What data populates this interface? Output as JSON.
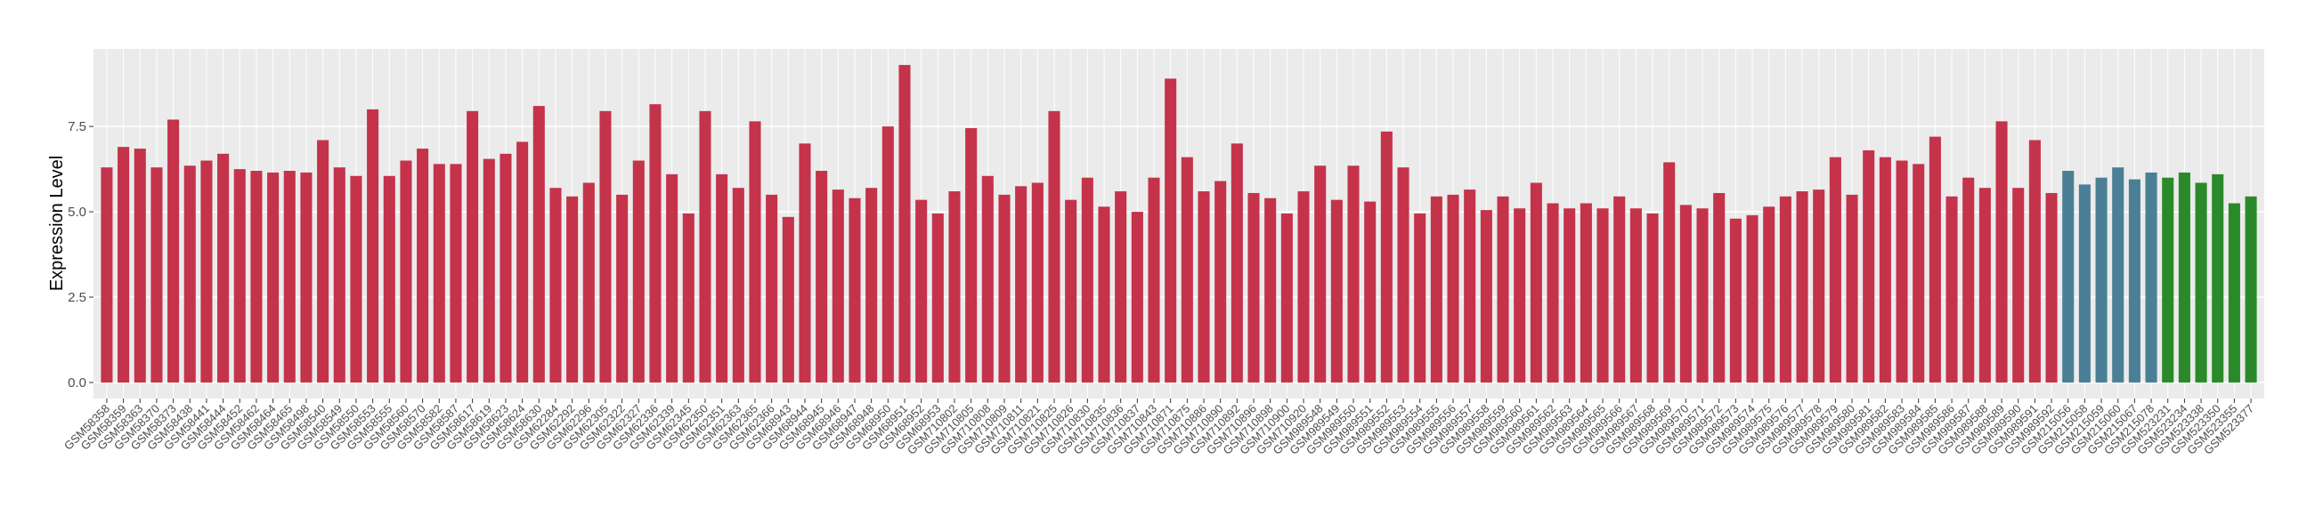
{
  "chart_data": {
    "type": "bar",
    "y_label": "Expression Level",
    "categories": [
      "GSM58358",
      "GSM58359",
      "GSM58363",
      "GSM58370",
      "GSM58373",
      "GSM58438",
      "GSM58441",
      "GSM58444",
      "GSM58452",
      "GSM58462",
      "GSM58464",
      "GSM58465",
      "GSM58498",
      "GSM58540",
      "GSM58549",
      "GSM58550",
      "GSM58553",
      "GSM58555",
      "GSM58560",
      "GSM58570",
      "GSM58582",
      "GSM58587",
      "GSM58617",
      "GSM58619",
      "GSM58623",
      "GSM58624",
      "GSM58630",
      "GSM62284",
      "GSM62292",
      "GSM62296",
      "GSM62305",
      "GSM62322",
      "GSM62327",
      "GSM62336",
      "GSM62339",
      "GSM62345",
      "GSM62350",
      "GSM62351",
      "GSM62363",
      "GSM62365",
      "GSM62366",
      "GSM68943",
      "GSM68944",
      "GSM68945",
      "GSM68946",
      "GSM68947",
      "GSM68948",
      "GSM68950",
      "GSM68951",
      "GSM68952",
      "GSM68953",
      "GSM710802",
      "GSM710805",
      "GSM710808",
      "GSM710809",
      "GSM710811",
      "GSM710821",
      "GSM710825",
      "GSM710826",
      "GSM710830",
      "GSM710835",
      "GSM710836",
      "GSM710837",
      "GSM710843",
      "GSM710871",
      "GSM710875",
      "GSM710886",
      "GSM710890",
      "GSM710892",
      "GSM710896",
      "GSM710898",
      "GSM710900",
      "GSM710920",
      "GSM989548",
      "GSM989549",
      "GSM989550",
      "GSM989551",
      "GSM989552",
      "GSM989553",
      "GSM989554",
      "GSM989555",
      "GSM989556",
      "GSM989557",
      "GSM989558",
      "GSM989559",
      "GSM989560",
      "GSM989561",
      "GSM989562",
      "GSM989563",
      "GSM989564",
      "GSM989565",
      "GSM989566",
      "GSM989567",
      "GSM989568",
      "GSM989569",
      "GSM989570",
      "GSM989571",
      "GSM989572",
      "GSM989573",
      "GSM989574",
      "GSM989575",
      "GSM989576",
      "GSM989577",
      "GSM989578",
      "GSM989579",
      "GSM989580",
      "GSM989581",
      "GSM989582",
      "GSM989583",
      "GSM989584",
      "GSM989585",
      "GSM989586",
      "GSM989587",
      "GSM989588",
      "GSM989589",
      "GSM989590",
      "GSM989591",
      "GSM989592",
      "GSM215056",
      "GSM215058",
      "GSM215059",
      "GSM215060",
      "GSM215067",
      "GSM215078",
      "GSM523231",
      "GSM523234",
      "GSM523338",
      "GSM523350",
      "GSM523355",
      "GSM523377"
    ],
    "values": [
      6.3,
      6.9,
      6.85,
      6.3,
      7.7,
      6.35,
      6.5,
      6.7,
      6.25,
      6.2,
      6.15,
      6.2,
      6.15,
      7.1,
      6.3,
      6.05,
      8.0,
      6.05,
      6.5,
      6.85,
      6.4,
      6.4,
      7.95,
      6.55,
      6.7,
      7.05,
      8.1,
      5.7,
      5.45,
      5.85,
      7.95,
      5.5,
      6.5,
      8.15,
      6.1,
      4.95,
      7.95,
      6.1,
      5.7,
      7.65,
      5.5,
      4.85,
      7.0,
      6.2,
      5.65,
      5.4,
      5.7,
      7.5,
      9.3,
      5.35,
      4.95,
      5.6,
      7.45,
      6.05,
      5.5,
      5.75,
      5.85,
      7.95,
      5.35,
      6.0,
      5.15,
      5.6,
      5.0,
      6.0,
      8.9,
      6.6,
      5.6,
      5.9,
      7.0,
      5.55,
      5.4,
      4.95,
      5.6,
      6.35,
      5.35,
      6.35,
      5.3,
      7.35,
      6.3,
      4.95,
      5.45,
      5.5,
      5.65,
      5.05,
      5.45,
      5.1,
      5.85,
      5.25,
      5.1,
      5.25,
      5.1,
      5.45,
      5.1,
      4.95,
      6.45,
      5.2,
      5.1,
      5.55,
      4.8,
      4.9,
      5.15,
      5.45,
      5.6,
      5.65,
      6.6,
      5.5,
      6.8,
      6.6,
      6.5,
      6.4,
      7.2,
      5.45,
      6.0,
      5.7,
      7.65,
      5.7,
      7.1,
      5.55,
      6.2,
      5.8,
      6.0,
      6.3,
      5.95,
      6.15,
      6.0,
      6.15,
      5.85,
      6.1,
      5.25,
      5.45
    ],
    "colors": [
      "#c4334a",
      "#c4334a",
      "#c4334a",
      "#c4334a",
      "#c4334a",
      "#c4334a",
      "#c4334a",
      "#c4334a",
      "#c4334a",
      "#c4334a",
      "#c4334a",
      "#c4334a",
      "#c4334a",
      "#c4334a",
      "#c4334a",
      "#c4334a",
      "#c4334a",
      "#c4334a",
      "#c4334a",
      "#c4334a",
      "#c4334a",
      "#c4334a",
      "#c4334a",
      "#c4334a",
      "#c4334a",
      "#c4334a",
      "#c4334a",
      "#c4334a",
      "#c4334a",
      "#c4334a",
      "#c4334a",
      "#c4334a",
      "#c4334a",
      "#c4334a",
      "#c4334a",
      "#c4334a",
      "#c4334a",
      "#c4334a",
      "#c4334a",
      "#c4334a",
      "#c4334a",
      "#c4334a",
      "#c4334a",
      "#c4334a",
      "#c4334a",
      "#c4334a",
      "#c4334a",
      "#c4334a",
      "#c4334a",
      "#c4334a",
      "#c4334a",
      "#c4334a",
      "#c4334a",
      "#c4334a",
      "#c4334a",
      "#c4334a",
      "#c4334a",
      "#c4334a",
      "#c4334a",
      "#c4334a",
      "#c4334a",
      "#c4334a",
      "#c4334a",
      "#c4334a",
      "#c4334a",
      "#c4334a",
      "#c4334a",
      "#c4334a",
      "#c4334a",
      "#c4334a",
      "#c4334a",
      "#c4334a",
      "#c4334a",
      "#c4334a",
      "#c4334a",
      "#c4334a",
      "#c4334a",
      "#c4334a",
      "#c4334a",
      "#c4334a",
      "#c4334a",
      "#c4334a",
      "#c4334a",
      "#c4334a",
      "#c4334a",
      "#c4334a",
      "#c4334a",
      "#c4334a",
      "#c4334a",
      "#c4334a",
      "#c4334a",
      "#c4334a",
      "#c4334a",
      "#c4334a",
      "#c4334a",
      "#c4334a",
      "#c4334a",
      "#c4334a",
      "#c4334a",
      "#c4334a",
      "#c4334a",
      "#c4334a",
      "#c4334a",
      "#c4334a",
      "#c4334a",
      "#c4334a",
      "#c4334a",
      "#c4334a",
      "#c4334a",
      "#c4334a",
      "#c4334a",
      "#c4334a",
      "#c4334a",
      "#c4334a",
      "#c4334a",
      "#c4334a",
      "#c4334a",
      "#c4334a",
      "#4a7f96",
      "#4a7f96",
      "#4a7f96",
      "#4a7f96",
      "#4a7f96",
      "#4a7f96",
      "#2a8a2a",
      "#2a8a2a",
      "#2a8a2a",
      "#2a8a2a",
      "#2a8a2a",
      "#2a8a2a"
    ],
    "ylim": [
      -0.47,
      9.77
    ],
    "yticks": [
      {
        "value": 0,
        "label": "0.0"
      },
      {
        "value": 2.5,
        "label": "2.5"
      },
      {
        "value": 5,
        "label": "5.0"
      },
      {
        "value": 7.5,
        "label": "7.5"
      }
    ],
    "grid": true
  }
}
